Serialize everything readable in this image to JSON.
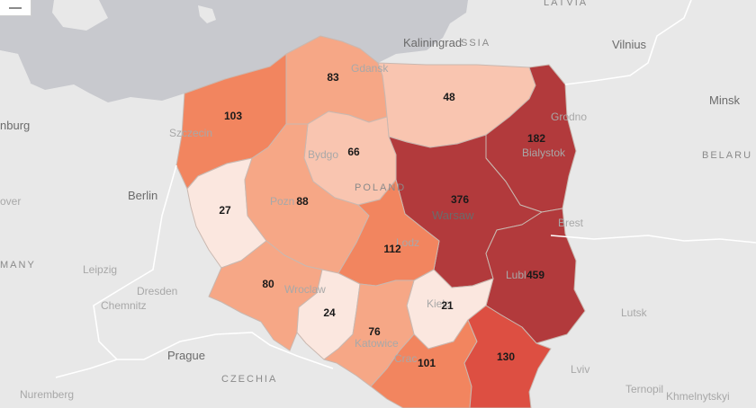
{
  "colors": {
    "land": "#e8e8e8",
    "sea": "#c8c9ce",
    "border": "#c9b8b0",
    "scale": [
      "#fbe7df",
      "#f9c5b0",
      "#f6a786",
      "#f2855f",
      "#dd4f42",
      "#b23a3c"
    ]
  },
  "labels": {
    "cities": {
      "kaliningrad": "Kaliningrad",
      "vilnius": "Vilnius",
      "minsk": "Minsk",
      "berlin": "Berlin",
      "leipzig": "Leipzig",
      "dresden": "Dresden",
      "chemnitz": "Chemnitz",
      "prague": "Prague",
      "nuremberg": "Nuremberg",
      "lutsk": "Lutsk",
      "lviv": "Lviv",
      "ternopil": "Ternopil",
      "khmelnytskyi": "Khmelnytskyi",
      "hamburg_partial": "nburg",
      "hannover_partial": "over",
      "brest": "Brest",
      "grodno": "Grodno"
    },
    "countries": {
      "poland": "POLAND",
      "czechia": "CZECHIA",
      "belarus_partial": "BELARU",
      "germany_partial": "MANY",
      "russia_partial": "SSIA",
      "latvia_partial": "LATVIA"
    },
    "regional_cities": {
      "gdansk": "Gdansk",
      "szczecin": "Szczecin",
      "bydgoszcz": "Bydgo",
      "poznan": "Pozn",
      "warsaw": "Warsaw",
      "bialystok": "Bialystok",
      "lodz": "Lodz",
      "lublin": "Lubl",
      "wroclaw": "Wroclaw",
      "kielce": "Kielc",
      "katowice": "Katowice",
      "cracow": "Crac"
    }
  },
  "regions": [
    {
      "id": "pomorskie",
      "value": "83",
      "level": 2
    },
    {
      "id": "warminsko-mazurskie",
      "value": "48",
      "level": 1
    },
    {
      "id": "zachodniopomorskie",
      "value": "103",
      "level": 3
    },
    {
      "id": "kujawsko-pomorskie",
      "value": "66",
      "level": 1
    },
    {
      "id": "podlaskie",
      "value": "182",
      "level": 5
    },
    {
      "id": "lubuskie",
      "value": "27",
      "level": 0
    },
    {
      "id": "wielkopolskie",
      "value": "88",
      "level": 2
    },
    {
      "id": "mazowieckie",
      "value": "376",
      "level": 5
    },
    {
      "id": "lodzkie",
      "value": "112",
      "level": 3
    },
    {
      "id": "lubelskie",
      "value": "459",
      "level": 5
    },
    {
      "id": "dolnoslaskie",
      "value": "80",
      "level": 2
    },
    {
      "id": "opolskie",
      "value": "24",
      "level": 0
    },
    {
      "id": "swietokrzyskie",
      "value": "21",
      "level": 0
    },
    {
      "id": "slaskie",
      "value": "76",
      "level": 2
    },
    {
      "id": "malopolskie",
      "value": "101",
      "level": 3
    },
    {
      "id": "podkarpackie",
      "value": "130",
      "level": 4
    }
  ]
}
